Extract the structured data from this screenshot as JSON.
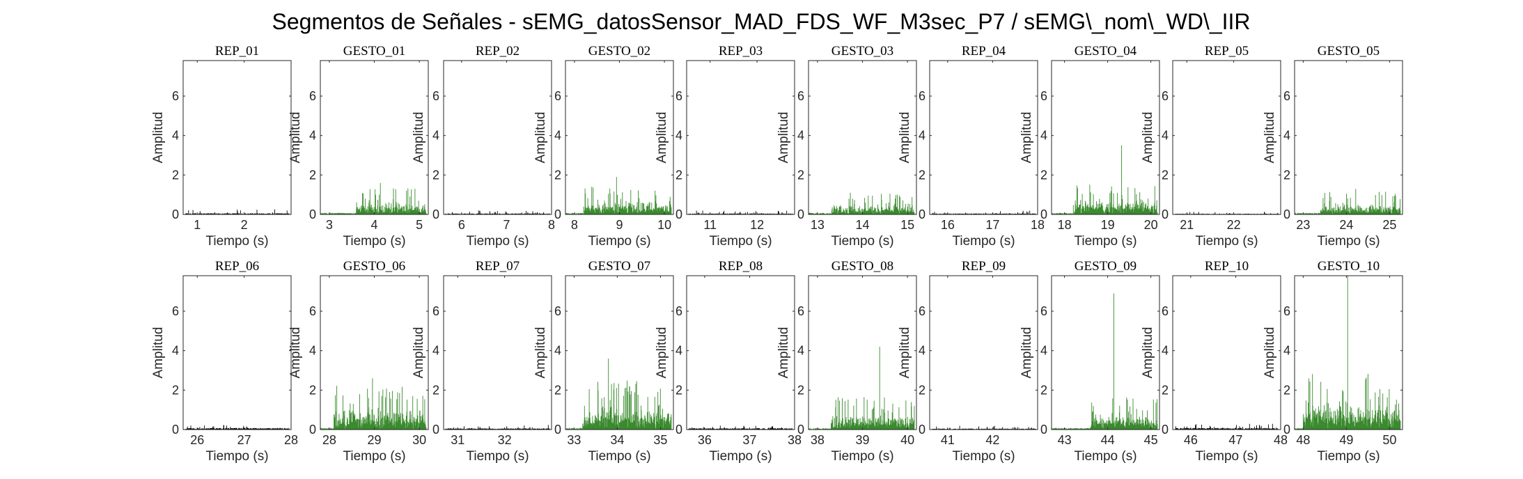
{
  "figure_title": "Segmentos de Señales - sEMG_datosSensor_MAD_FDS_WF_M3sec_P7 / sEMG\\_nom\\_WD\\_IIR",
  "colors": {
    "rep": "#000000",
    "gesto": "#3a8a2e",
    "axes": "#262626"
  },
  "chart_data": [
    {
      "type": "line",
      "title": "REP_01",
      "xlabel": "Tiempo (s)",
      "ylabel": "Amplitud",
      "xlim": [
        0.7,
        3.0
      ],
      "ylim": [
        0,
        7.8
      ],
      "xticks": [
        1,
        2
      ],
      "yticks": [
        0,
        2,
        4,
        6
      ],
      "series": [
        {
          "kind": "rep",
          "peak": 0.25,
          "base": 0.06
        }
      ]
    },
    {
      "type": "line",
      "title": "GESTO_01",
      "xlabel": "Tiempo (s)",
      "ylabel": "Amplitud",
      "xlim": [
        2.8,
        5.2
      ],
      "ylim": [
        0,
        7.8
      ],
      "xticks": [
        3,
        4,
        5
      ],
      "yticks": [
        0,
        2,
        4,
        6
      ],
      "series": [
        {
          "kind": "gesto",
          "peak": 1.6,
          "base": 0.4,
          "on": 3.6
        }
      ]
    },
    {
      "type": "line",
      "title": "REP_02",
      "xlabel": "Tiempo (s)",
      "ylabel": "Amplitud",
      "xlim": [
        5.6,
        8.0
      ],
      "ylim": [
        0,
        7.8
      ],
      "xticks": [
        6,
        7,
        8
      ],
      "yticks": [
        0,
        2,
        4,
        6
      ],
      "series": [
        {
          "kind": "rep",
          "peak": 0.2,
          "base": 0.05
        }
      ]
    },
    {
      "type": "line",
      "title": "GESTO_02",
      "xlabel": "Tiempo (s)",
      "ylabel": "Amplitud",
      "xlim": [
        7.8,
        10.2
      ],
      "ylim": [
        0,
        7.8
      ],
      "xticks": [
        8,
        9,
        10
      ],
      "yticks": [
        0,
        2,
        4,
        6
      ],
      "series": [
        {
          "kind": "gesto",
          "peak": 1.9,
          "base": 0.45,
          "on": 8.2
        }
      ]
    },
    {
      "type": "line",
      "title": "REP_03",
      "xlabel": "Tiempo (s)",
      "ylabel": "Amplitud",
      "xlim": [
        10.5,
        12.8
      ],
      "ylim": [
        0,
        7.8
      ],
      "xticks": [
        11,
        12
      ],
      "yticks": [
        0,
        2,
        4,
        6
      ],
      "series": [
        {
          "kind": "rep",
          "peak": 0.2,
          "base": 0.05
        }
      ]
    },
    {
      "type": "line",
      "title": "GESTO_03",
      "xlabel": "Tiempo (s)",
      "ylabel": "Amplitud",
      "xlim": [
        12.8,
        15.2
      ],
      "ylim": [
        0,
        7.8
      ],
      "xticks": [
        13,
        14,
        15
      ],
      "yticks": [
        0,
        2,
        4,
        6
      ],
      "series": [
        {
          "kind": "gesto",
          "peak": 1.1,
          "base": 0.35,
          "on": 13.3
        }
      ]
    },
    {
      "type": "line",
      "title": "REP_04",
      "xlabel": "Tiempo (s)",
      "ylabel": "Amplitud",
      "xlim": [
        15.6,
        18.0
      ],
      "ylim": [
        0,
        7.8
      ],
      "xticks": [
        16,
        17,
        18
      ],
      "yticks": [
        0,
        2,
        4,
        6
      ],
      "series": [
        {
          "kind": "rep",
          "peak": 0.2,
          "base": 0.05
        }
      ]
    },
    {
      "type": "line",
      "title": "GESTO_04",
      "xlabel": "Tiempo (s)",
      "ylabel": "Amplitud",
      "xlim": [
        17.7,
        20.2
      ],
      "ylim": [
        0,
        7.8
      ],
      "xticks": [
        18,
        19,
        20
      ],
      "yticks": [
        0,
        2,
        4,
        6
      ],
      "series": [
        {
          "kind": "gesto",
          "peak": 3.5,
          "base": 0.5,
          "on": 18.2
        }
      ]
    },
    {
      "type": "line",
      "title": "REP_05",
      "xlabel": "Tiempo (s)",
      "ylabel": "Amplitud",
      "xlim": [
        20.7,
        23.0
      ],
      "ylim": [
        0,
        7.8
      ],
      "xticks": [
        21,
        22
      ],
      "yticks": [
        0,
        2,
        4,
        6
      ],
      "series": [
        {
          "kind": "rep",
          "peak": 0.15,
          "base": 0.04
        }
      ]
    },
    {
      "type": "line",
      "title": "GESTO_05",
      "xlabel": "Tiempo (s)",
      "ylabel": "Amplitud",
      "xlim": [
        22.8,
        25.3
      ],
      "ylim": [
        0,
        7.8
      ],
      "xticks": [
        23,
        24,
        25
      ],
      "yticks": [
        0,
        2,
        4,
        6
      ],
      "series": [
        {
          "kind": "gesto",
          "peak": 1.3,
          "base": 0.35,
          "on": 23.4
        }
      ]
    },
    {
      "type": "line",
      "title": "REP_06",
      "xlabel": "Tiempo (s)",
      "ylabel": "Amplitud",
      "xlim": [
        25.7,
        28.0
      ],
      "ylim": [
        0,
        7.8
      ],
      "xticks": [
        26,
        27,
        28
      ],
      "yticks": [
        0,
        2,
        4,
        6
      ],
      "series": [
        {
          "kind": "rep",
          "peak": 0.25,
          "base": 0.08
        }
      ]
    },
    {
      "type": "line",
      "title": "GESTO_06",
      "xlabel": "Tiempo (s)",
      "ylabel": "Amplitud",
      "xlim": [
        27.8,
        30.2
      ],
      "ylim": [
        0,
        7.8
      ],
      "xticks": [
        28,
        29,
        30
      ],
      "yticks": [
        0,
        2,
        4,
        6
      ],
      "series": [
        {
          "kind": "gesto",
          "peak": 2.6,
          "base": 0.7,
          "on": 28.1
        }
      ]
    },
    {
      "type": "line",
      "title": "REP_07",
      "xlabel": "Tiempo (s)",
      "ylabel": "Amplitud",
      "xlim": [
        30.7,
        33.0
      ],
      "ylim": [
        0,
        7.8
      ],
      "xticks": [
        31,
        32
      ],
      "yticks": [
        0,
        2,
        4,
        6
      ],
      "series": [
        {
          "kind": "rep",
          "peak": 0.25,
          "base": 0.06
        }
      ]
    },
    {
      "type": "line",
      "title": "GESTO_07",
      "xlabel": "Tiempo (s)",
      "ylabel": "Amplitud",
      "xlim": [
        32.8,
        35.3
      ],
      "ylim": [
        0,
        7.8
      ],
      "xticks": [
        33,
        34,
        35
      ],
      "yticks": [
        0,
        2,
        4,
        6
      ],
      "series": [
        {
          "kind": "gesto",
          "peak": 3.6,
          "base": 0.8,
          "on": 33.2
        }
      ]
    },
    {
      "type": "line",
      "title": "REP_08",
      "xlabel": "Tiempo (s)",
      "ylabel": "Amplitud",
      "xlim": [
        35.6,
        38.0
      ],
      "ylim": [
        0,
        7.8
      ],
      "xticks": [
        36,
        37,
        38
      ],
      "yticks": [
        0,
        2,
        4,
        6
      ],
      "series": [
        {
          "kind": "rep",
          "peak": 0.2,
          "base": 0.07
        }
      ]
    },
    {
      "type": "line",
      "title": "GESTO_08",
      "xlabel": "Tiempo (s)",
      "ylabel": "Amplitud",
      "xlim": [
        37.8,
        40.2
      ],
      "ylim": [
        0,
        7.8
      ],
      "xticks": [
        38,
        39,
        40
      ],
      "yticks": [
        0,
        2,
        4,
        6
      ],
      "series": [
        {
          "kind": "gesto",
          "peak": 4.2,
          "base": 0.5,
          "on": 38.3
        }
      ]
    },
    {
      "type": "line",
      "title": "REP_09",
      "xlabel": "Tiempo (s)",
      "ylabel": "Amplitud",
      "xlim": [
        40.6,
        43.0
      ],
      "ylim": [
        0,
        7.8
      ],
      "xticks": [
        41,
        42
      ],
      "yticks": [
        0,
        2,
        4,
        6
      ],
      "series": [
        {
          "kind": "rep",
          "peak": 0.2,
          "base": 0.05
        }
      ]
    },
    {
      "type": "line",
      "title": "GESTO_09",
      "xlabel": "Tiempo (s)",
      "ylabel": "Amplitud",
      "xlim": [
        42.7,
        45.2
      ],
      "ylim": [
        0,
        7.8
      ],
      "xticks": [
        43,
        44,
        45
      ],
      "yticks": [
        0,
        2,
        4,
        6
      ],
      "series": [
        {
          "kind": "gesto",
          "peak": 6.9,
          "base": 0.5,
          "on": 43.6
        }
      ]
    },
    {
      "type": "line",
      "title": "REP_10",
      "xlabel": "Tiempo (s)",
      "ylabel": "Amplitud",
      "xlim": [
        45.6,
        48.0
      ],
      "ylim": [
        0,
        7.8
      ],
      "xticks": [
        46,
        47,
        48
      ],
      "yticks": [
        0,
        2,
        4,
        6
      ],
      "series": [
        {
          "kind": "rep",
          "peak": 0.3,
          "base": 0.08
        }
      ]
    },
    {
      "type": "line",
      "title": "GESTO_10",
      "xlabel": "Tiempo (s)",
      "ylabel": "Amplitud",
      "xlim": [
        47.8,
        50.3
      ],
      "ylim": [
        0,
        7.8
      ],
      "xticks": [
        48,
        49,
        50
      ],
      "yticks": [
        0,
        2,
        4,
        6
      ],
      "series": [
        {
          "kind": "gesto",
          "peak": 7.8,
          "base": 0.9,
          "on": 48.0
        }
      ]
    }
  ]
}
